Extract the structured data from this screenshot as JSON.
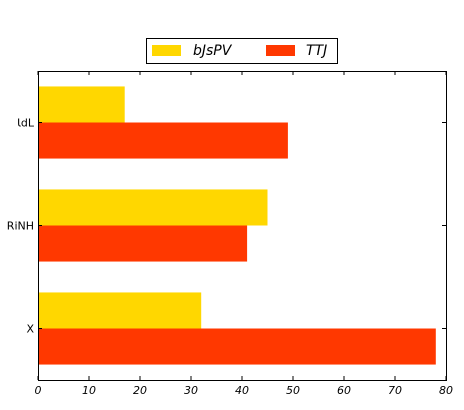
{
  "chart_data": {
    "type": "bar",
    "orientation": "horizontal",
    "title": "",
    "xlabel": "",
    "ylabel": "",
    "categories": [
      "X",
      "RiNH",
      "ƖdL"
    ],
    "series": [
      {
        "name": "bJsPV",
        "values": [
          32,
          45,
          17
        ],
        "color": "#FFD700"
      },
      {
        "name": "TTJ",
        "values": [
          78,
          41,
          49
        ],
        "color": "#FF3800"
      }
    ],
    "xlim": [
      0,
      80
    ],
    "xticks": [
      0,
      10,
      20,
      30,
      40,
      50,
      60,
      70,
      80
    ],
    "xtick_labels": [
      "0",
      "10",
      "20",
      "30",
      "40",
      "50",
      "60",
      "70",
      "80"
    ],
    "grid": false,
    "legend_position": "top-center",
    "legend_columns": 2
  }
}
